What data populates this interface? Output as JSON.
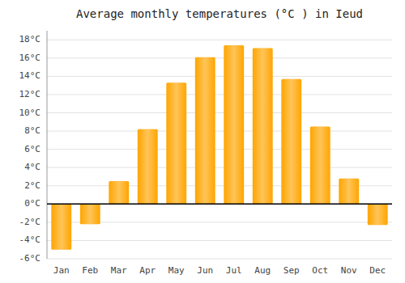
{
  "chart_data": {
    "type": "bar",
    "title": "Average monthly temperatures (°C ) in Ieud",
    "categories": [
      "Jan",
      "Feb",
      "Mar",
      "Apr",
      "May",
      "Jun",
      "Jul",
      "Aug",
      "Sep",
      "Oct",
      "Nov",
      "Dec"
    ],
    "values": [
      -5.0,
      -2.2,
      2.5,
      8.2,
      13.3,
      16.1,
      17.4,
      17.1,
      13.7,
      8.5,
      2.8,
      -2.3
    ],
    "color": "#FFA500",
    "ylim": [
      -6,
      19
    ],
    "yticks": [
      {
        "value": -6,
        "label": "-6°C"
      },
      {
        "value": -4,
        "label": "-4°C"
      },
      {
        "value": -2,
        "label": "-2°C"
      },
      {
        "value": 0,
        "label": "0°C"
      },
      {
        "value": 2,
        "label": "2°C"
      },
      {
        "value": 4,
        "label": "4°C"
      },
      {
        "value": 6,
        "label": "6°C"
      },
      {
        "value": 8,
        "label": "8°C"
      },
      {
        "value": 10,
        "label": "10°C"
      },
      {
        "value": 12,
        "label": "12°C"
      },
      {
        "value": 14,
        "label": "14°C"
      },
      {
        "value": 16,
        "label": "16°C"
      },
      {
        "value": 18,
        "label": "18°C"
      }
    ],
    "grid": true
  }
}
